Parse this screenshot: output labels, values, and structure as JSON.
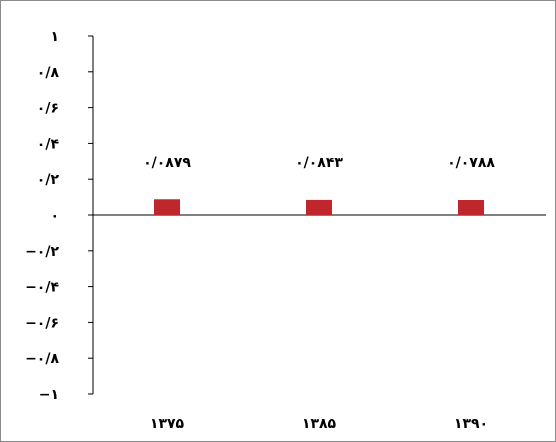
{
  "chart_data": {
    "type": "bar",
    "categories": [
      "۱۳۷۵",
      "۱۳۸۵",
      "۱۳۹۰"
    ],
    "values": [
      0.0879,
      0.0843,
      0.0788
    ],
    "data_labels": [
      "۰/۰۸۷۹",
      "۰/۰۸۴۳",
      "۰/۰۷۸۸"
    ],
    "ylim": [
      -1,
      1
    ],
    "y_ticks": [
      1,
      0.8,
      0.6,
      0.4,
      0.2,
      0,
      -0.2,
      -0.4,
      -0.6,
      -0.8,
      -1
    ],
    "y_tick_labels": [
      "۱",
      "۰/۸",
      "۰/۶",
      "۰/۴",
      "۰/۲",
      "۰",
      "−۰/۲",
      "−۰/۴",
      "−۰/۶",
      "−۰/۸",
      "−۱"
    ],
    "grid": false,
    "legend": "none",
    "bar_color": "#c0272d"
  }
}
